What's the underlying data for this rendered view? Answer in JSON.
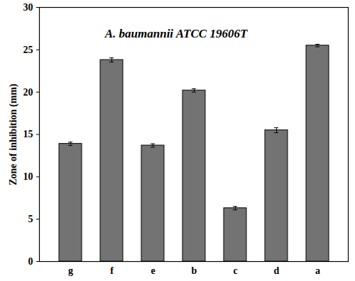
{
  "chart_data": {
    "type": "bar",
    "title": "A. baumannii ATCC 19606T",
    "y_label": "Zone of inhibition (mm)",
    "categories": [
      "g",
      "f",
      "e",
      "b",
      "c",
      "d",
      "a"
    ],
    "values": [
      13.9,
      23.8,
      13.7,
      20.2,
      6.3,
      15.5,
      25.5
    ],
    "errors": [
      0.2,
      0.25,
      0.2,
      0.2,
      0.2,
      0.3,
      0.15
    ],
    "color": "#737373",
    "ylim": [
      0,
      30
    ],
    "yticks": [
      0,
      5,
      10,
      15,
      20,
      25,
      30
    ],
    "grid": false
  }
}
